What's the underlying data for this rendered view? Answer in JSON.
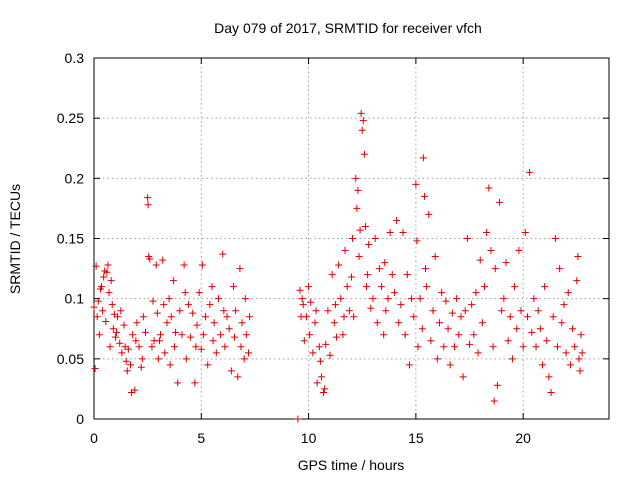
{
  "chart_data": {
    "type": "scatter",
    "title": "Day 079 of 2017, SRMTID for receiver vfch",
    "xlabel": "GPS time / hours",
    "ylabel": "SRMTID / TECUs",
    "xlim": [
      0,
      24
    ],
    "ylim": [
      0,
      0.3
    ],
    "xticks": [
      0,
      5,
      10,
      15,
      20
    ],
    "yticks": [
      0,
      0.05,
      0.1,
      0.15,
      0.2,
      0.25,
      0.3
    ],
    "xtick_labels": [
      "0",
      "5",
      "10",
      "15",
      "20"
    ],
    "ytick_labels": [
      "0",
      "0.05",
      "0.1",
      "0.15",
      "0.2",
      "0.25",
      "0.3"
    ],
    "grid": true,
    "marker": "plus",
    "series": [
      {
        "name": "SRMTID",
        "color": "#dd0000",
        "points": [
          [
            0.0,
            0.093
          ],
          [
            0.05,
            0.042
          ],
          [
            0.1,
            0.127
          ],
          [
            0.15,
            0.085
          ],
          [
            0.2,
            0.098
          ],
          [
            0.25,
            0.07
          ],
          [
            0.3,
            0.108
          ],
          [
            0.35,
            0.11
          ],
          [
            0.4,
            0.09
          ],
          [
            0.45,
            0.118
          ],
          [
            0.5,
            0.123
          ],
          [
            0.55,
            0.081
          ],
          [
            0.6,
            0.122
          ],
          [
            0.65,
            0.128
          ],
          [
            0.7,
            0.105
          ],
          [
            0.75,
            0.06
          ],
          [
            0.8,
            0.115
          ],
          [
            0.85,
            0.095
          ],
          [
            0.9,
            0.075
          ],
          [
            0.95,
            0.087
          ],
          [
            1.0,
            0.068
          ],
          [
            1.05,
            0.072
          ],
          [
            1.1,
            0.085
          ],
          [
            1.2,
            0.063
          ],
          [
            1.25,
            0.09
          ],
          [
            1.3,
            0.055
          ],
          [
            1.4,
            0.078
          ],
          [
            1.45,
            0.06
          ],
          [
            1.5,
            0.048
          ],
          [
            1.55,
            0.04
          ],
          [
            1.6,
            0.058
          ],
          [
            1.7,
            0.045
          ],
          [
            1.75,
            0.022
          ],
          [
            1.8,
            0.07
          ],
          [
            1.9,
            0.024
          ],
          [
            1.95,
            0.065
          ],
          [
            2.0,
            0.08
          ],
          [
            2.1,
            0.06
          ],
          [
            2.2,
            0.043
          ],
          [
            2.25,
            0.05
          ],
          [
            2.3,
            0.085
          ],
          [
            2.4,
            0.072
          ],
          [
            2.5,
            0.184
          ],
          [
            2.52,
            0.178
          ],
          [
            2.55,
            0.135
          ],
          [
            2.6,
            0.133
          ],
          [
            2.7,
            0.06
          ],
          [
            2.75,
            0.098
          ],
          [
            2.8,
            0.065
          ],
          [
            2.9,
            0.128
          ],
          [
            2.95,
            0.088
          ],
          [
            3.0,
            0.05
          ],
          [
            3.05,
            0.065
          ],
          [
            3.1,
            0.07
          ],
          [
            3.2,
            0.132
          ],
          [
            3.25,
            0.095
          ],
          [
            3.3,
            0.055
          ],
          [
            3.4,
            0.08
          ],
          [
            3.5,
            0.1
          ],
          [
            3.55,
            0.045
          ],
          [
            3.6,
            0.085
          ],
          [
            3.7,
            0.115
          ],
          [
            3.75,
            0.06
          ],
          [
            3.8,
            0.072
          ],
          [
            3.9,
            0.03
          ],
          [
            4.0,
            0.09
          ],
          [
            4.1,
            0.07
          ],
          [
            4.2,
            0.128
          ],
          [
            4.25,
            0.105
          ],
          [
            4.3,
            0.05
          ],
          [
            4.4,
            0.095
          ],
          [
            4.5,
            0.068
          ],
          [
            4.6,
            0.088
          ],
          [
            4.7,
            0.03
          ],
          [
            4.75,
            0.06
          ],
          [
            4.8,
            0.078
          ],
          [
            4.9,
            0.105
          ],
          [
            5.0,
            0.058
          ],
          [
            5.05,
            0.128
          ],
          [
            5.1,
            0.07
          ],
          [
            5.2,
            0.085
          ],
          [
            5.3,
            0.045
          ],
          [
            5.4,
            0.095
          ],
          [
            5.5,
            0.11
          ],
          [
            5.55,
            0.065
          ],
          [
            5.6,
            0.08
          ],
          [
            5.7,
            0.055
          ],
          [
            5.8,
            0.1
          ],
          [
            5.9,
            0.07
          ],
          [
            6.0,
            0.137
          ],
          [
            6.05,
            0.09
          ],
          [
            6.1,
            0.06
          ],
          [
            6.2,
            0.085
          ],
          [
            6.3,
            0.075
          ],
          [
            6.4,
            0.04
          ],
          [
            6.5,
            0.11
          ],
          [
            6.55,
            0.068
          ],
          [
            6.6,
            0.09
          ],
          [
            6.7,
            0.035
          ],
          [
            6.8,
            0.125
          ],
          [
            6.85,
            0.06
          ],
          [
            6.9,
            0.08
          ],
          [
            7.0,
            0.05
          ],
          [
            7.05,
            0.1
          ],
          [
            7.1,
            0.07
          ],
          [
            7.2,
            0.055
          ],
          [
            7.25,
            0.085
          ],
          [
            9.5,
            0.0
          ],
          [
            9.6,
            0.107
          ],
          [
            9.65,
            0.085
          ],
          [
            9.7,
            0.1
          ],
          [
            9.75,
            0.095
          ],
          [
            9.8,
            0.065
          ],
          [
            9.9,
            0.085
          ],
          [
            10.0,
            0.11
          ],
          [
            10.05,
            0.07
          ],
          [
            10.1,
            0.097
          ],
          [
            10.2,
            0.055
          ],
          [
            10.3,
            0.08
          ],
          [
            10.35,
            0.09
          ],
          [
            10.4,
            0.03
          ],
          [
            10.5,
            0.06
          ],
          [
            10.55,
            0.048
          ],
          [
            10.6,
            0.035
          ],
          [
            10.7,
            0.022
          ],
          [
            10.75,
            0.025
          ],
          [
            10.8,
            0.062
          ],
          [
            10.9,
            0.09
          ],
          [
            11.0,
            0.053
          ],
          [
            11.1,
            0.12
          ],
          [
            11.2,
            0.08
          ],
          [
            11.25,
            0.095
          ],
          [
            11.3,
            0.068
          ],
          [
            11.4,
            0.128
          ],
          [
            11.5,
            0.1
          ],
          [
            11.6,
            0.07
          ],
          [
            11.65,
            0.085
          ],
          [
            11.7,
            0.14
          ],
          [
            11.8,
            0.11
          ],
          [
            11.9,
            0.09
          ],
          [
            12.0,
            0.118
          ],
          [
            12.05,
            0.15
          ],
          [
            12.1,
            0.085
          ],
          [
            12.2,
            0.2
          ],
          [
            12.25,
            0.175
          ],
          [
            12.3,
            0.19
          ],
          [
            12.35,
            0.135
          ],
          [
            12.4,
            0.157
          ],
          [
            12.45,
            0.254
          ],
          [
            12.5,
            0.24
          ],
          [
            12.55,
            0.248
          ],
          [
            12.6,
            0.22
          ],
          [
            12.65,
            0.16
          ],
          [
            12.7,
            0.11
          ],
          [
            12.75,
            0.12
          ],
          [
            12.8,
            0.145
          ],
          [
            12.9,
            0.092
          ],
          [
            13.0,
            0.1
          ],
          [
            13.1,
            0.15
          ],
          [
            13.2,
            0.08
          ],
          [
            13.3,
            0.125
          ],
          [
            13.4,
            0.11
          ],
          [
            13.5,
            0.07
          ],
          [
            13.55,
            0.13
          ],
          [
            13.6,
            0.09
          ],
          [
            13.7,
            0.1
          ],
          [
            13.8,
            0.155
          ],
          [
            13.9,
            0.12
          ],
          [
            14.0,
            0.105
          ],
          [
            14.1,
            0.165
          ],
          [
            14.2,
            0.08
          ],
          [
            14.3,
            0.095
          ],
          [
            14.4,
            0.155
          ],
          [
            14.5,
            0.07
          ],
          [
            14.6,
            0.12
          ],
          [
            14.7,
            0.045
          ],
          [
            14.8,
            0.1
          ],
          [
            14.9,
            0.085
          ],
          [
            15.0,
            0.195
          ],
          [
            15.05,
            0.148
          ],
          [
            15.1,
            0.06
          ],
          [
            15.2,
            0.1
          ],
          [
            15.3,
            0.075
          ],
          [
            15.35,
            0.217
          ],
          [
            15.4,
            0.185
          ],
          [
            15.45,
            0.125
          ],
          [
            15.5,
            0.11
          ],
          [
            15.6,
            0.17
          ],
          [
            15.7,
            0.065
          ],
          [
            15.8,
            0.09
          ],
          [
            15.9,
            0.135
          ],
          [
            16.0,
            0.05
          ],
          [
            16.1,
            0.08
          ],
          [
            16.2,
            0.105
          ],
          [
            16.3,
            0.06
          ],
          [
            16.4,
            0.098
          ],
          [
            16.5,
            0.075
          ],
          [
            16.6,
            0.045
          ],
          [
            16.7,
            0.088
          ],
          [
            16.8,
            0.06
          ],
          [
            16.9,
            0.1
          ],
          [
            17.0,
            0.07
          ],
          [
            17.1,
            0.085
          ],
          [
            17.2,
            0.035
          ],
          [
            17.3,
            0.09
          ],
          [
            17.4,
            0.15
          ],
          [
            17.5,
            0.062
          ],
          [
            17.6,
            0.095
          ],
          [
            17.7,
            0.07
          ],
          [
            17.8,
            0.105
          ],
          [
            17.9,
            0.055
          ],
          [
            18.0,
            0.132
          ],
          [
            18.1,
            0.08
          ],
          [
            18.2,
            0.11
          ],
          [
            18.3,
            0.155
          ],
          [
            18.4,
            0.192
          ],
          [
            18.5,
            0.14
          ],
          [
            18.6,
            0.06
          ],
          [
            18.65,
            0.015
          ],
          [
            18.7,
            0.125
          ],
          [
            18.8,
            0.028
          ],
          [
            18.9,
            0.18
          ],
          [
            19.0,
            0.09
          ],
          [
            19.1,
            0.1
          ],
          [
            19.2,
            0.13
          ],
          [
            19.3,
            0.065
          ],
          [
            19.4,
            0.085
          ],
          [
            19.5,
            0.05
          ],
          [
            19.6,
            0.11
          ],
          [
            19.7,
            0.075
          ],
          [
            19.8,
            0.14
          ],
          [
            19.9,
            0.09
          ],
          [
            20.0,
            0.06
          ],
          [
            20.1,
            0.155
          ],
          [
            20.2,
            0.085
          ],
          [
            20.3,
            0.205
          ],
          [
            20.4,
            0.072
          ],
          [
            20.5,
            0.1
          ],
          [
            20.6,
            0.06
          ],
          [
            20.7,
            0.09
          ],
          [
            20.8,
            0.075
          ],
          [
            20.9,
            0.045
          ],
          [
            21.0,
            0.11
          ],
          [
            21.1,
            0.065
          ],
          [
            21.2,
            0.035
          ],
          [
            21.3,
            0.022
          ],
          [
            21.4,
            0.085
          ],
          [
            21.5,
            0.15
          ],
          [
            21.6,
            0.06
          ],
          [
            21.7,
            0.125
          ],
          [
            21.8,
            0.08
          ],
          [
            21.9,
            0.095
          ],
          [
            22.0,
            0.055
          ],
          [
            22.1,
            0.105
          ],
          [
            22.2,
            0.045
          ],
          [
            22.3,
            0.075
          ],
          [
            22.4,
            0.06
          ],
          [
            22.5,
            0.115
          ],
          [
            22.55,
            0.135
          ],
          [
            22.6,
            0.05
          ],
          [
            22.65,
            0.04
          ],
          [
            22.7,
            0.07
          ],
          [
            22.75,
            0.055
          ]
        ]
      }
    ]
  }
}
